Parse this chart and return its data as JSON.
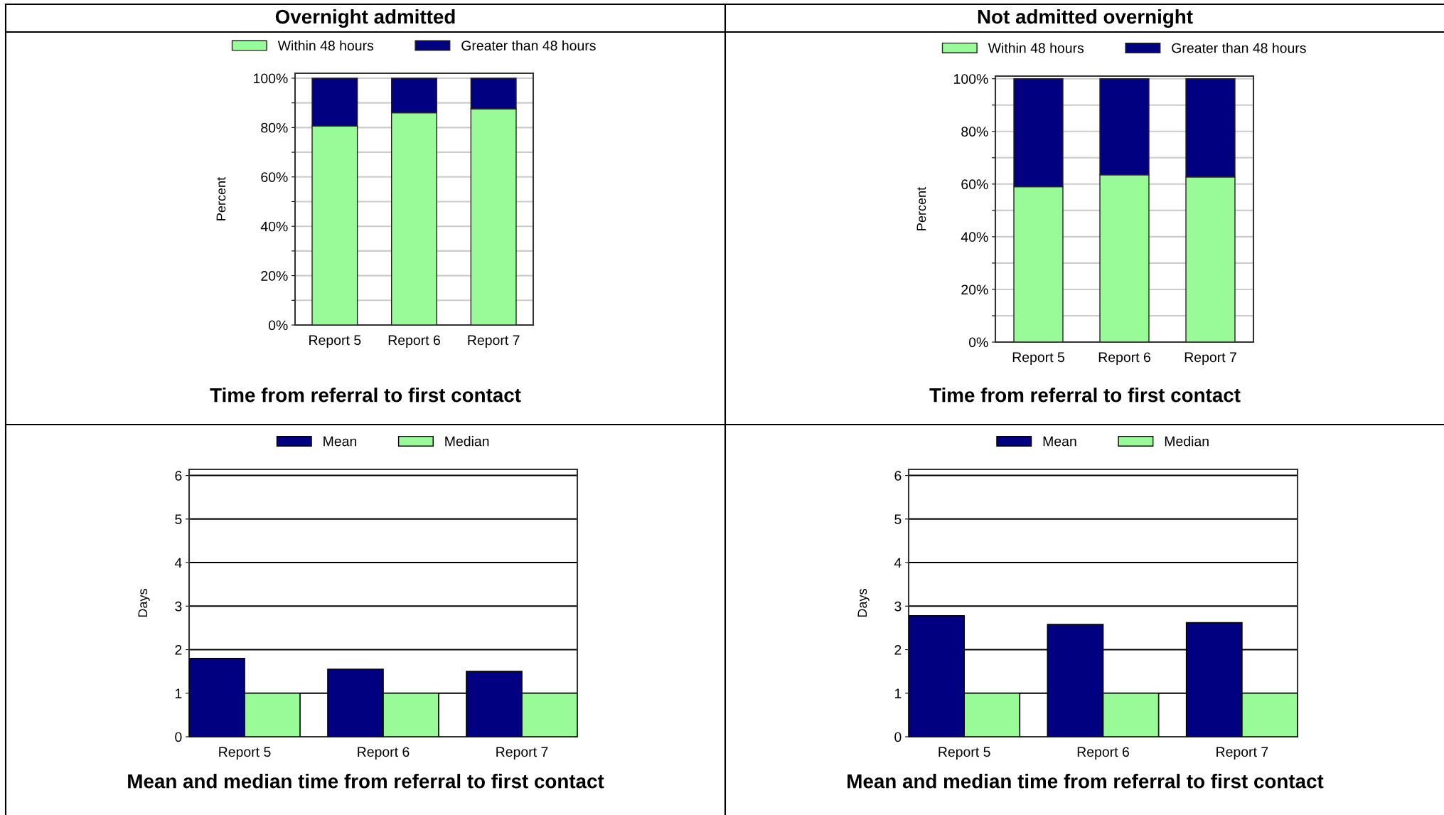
{
  "chart_data": [
    {
      "type": "bar",
      "subtitle": "Overnight admitted",
      "title": "Time from referral to first contact",
      "ylabel": "Percent",
      "categories": [
        "Report 5",
        "Report 6",
        "Report 7"
      ],
      "stacked": true,
      "series": [
        {
          "name": "Within 48 hours",
          "color": "#98fb98",
          "values": [
            80.6,
            86,
            87.6
          ]
        },
        {
          "name": "Greater than 48 hours",
          "color": "#000080",
          "values": [
            19.4,
            14,
            12.4
          ]
        }
      ],
      "ylim": [
        0,
        102
      ],
      "yticks": [
        {
          "value": 0,
          "label": "0%"
        },
        {
          "value": 10,
          "label": null
        },
        {
          "value": 20,
          "label": "20%"
        },
        {
          "value": 30,
          "label": null
        },
        {
          "value": 40,
          "label": "40%"
        },
        {
          "value": 50,
          "label": null
        },
        {
          "value": 60,
          "label": "60%"
        },
        {
          "value": 70,
          "label": null
        },
        {
          "value": 80,
          "label": "80%"
        },
        {
          "value": 90,
          "label": null
        },
        {
          "value": 100,
          "label": "100%"
        }
      ],
      "grid": "y",
      "legend": "top"
    },
    {
      "type": "bar",
      "subtitle": "Not admitted overnight",
      "title": "Time from referral to first contact",
      "ylabel": "Percent",
      "categories": [
        "Report 5",
        "Report 6",
        "Report 7"
      ],
      "stacked": true,
      "series": [
        {
          "name": "Within 48 hours",
          "color": "#98fb98",
          "values": [
            59,
            63.5,
            62.7
          ]
        },
        {
          "name": "Greater than 48 hours",
          "color": "#000080",
          "values": [
            41,
            36.5,
            37.3
          ]
        }
      ],
      "ylim": [
        0,
        101
      ],
      "yticks": [
        {
          "value": 0,
          "label": "0%"
        },
        {
          "value": 10,
          "label": null
        },
        {
          "value": 20,
          "label": "20%"
        },
        {
          "value": 30,
          "label": null
        },
        {
          "value": 40,
          "label": "40%"
        },
        {
          "value": 50,
          "label": null
        },
        {
          "value": 60,
          "label": "60%"
        },
        {
          "value": 70,
          "label": null
        },
        {
          "value": 80,
          "label": "80%"
        },
        {
          "value": 90,
          "label": null
        },
        {
          "value": 100,
          "label": "100%"
        }
      ],
      "grid": "y",
      "legend": "top"
    },
    {
      "type": "bar",
      "title": "Mean and median time from referral to first contact",
      "ylabel": "Days",
      "categories": [
        "Report 5",
        "Report 6",
        "Report 7"
      ],
      "series": [
        {
          "name": "Mean",
          "color": "#000080",
          "values": [
            1.8,
            1.55,
            1.5
          ]
        },
        {
          "name": "Median",
          "color": "#98fb98",
          "values": [
            1,
            1,
            1
          ]
        }
      ],
      "ylim": [
        0,
        6.14
      ],
      "yticks": [
        0,
        1,
        2,
        3,
        4,
        5,
        6
      ],
      "grid": "y",
      "legend": "top"
    },
    {
      "type": "bar",
      "title": "Mean and median time from referral to first contact",
      "ylabel": "Days",
      "categories": [
        "Report 5",
        "Report 6",
        "Report 7"
      ],
      "series": [
        {
          "name": "Mean",
          "color": "#000080",
          "values": [
            2.78,
            2.58,
            2.62
          ]
        },
        {
          "name": "Median",
          "color": "#98fb98",
          "values": [
            1,
            1,
            1
          ]
        }
      ],
      "ylim": [
        0,
        6.14
      ],
      "yticks": [
        0,
        1,
        2,
        3,
        4,
        5,
        6
      ],
      "grid": "y",
      "legend": "top"
    }
  ]
}
